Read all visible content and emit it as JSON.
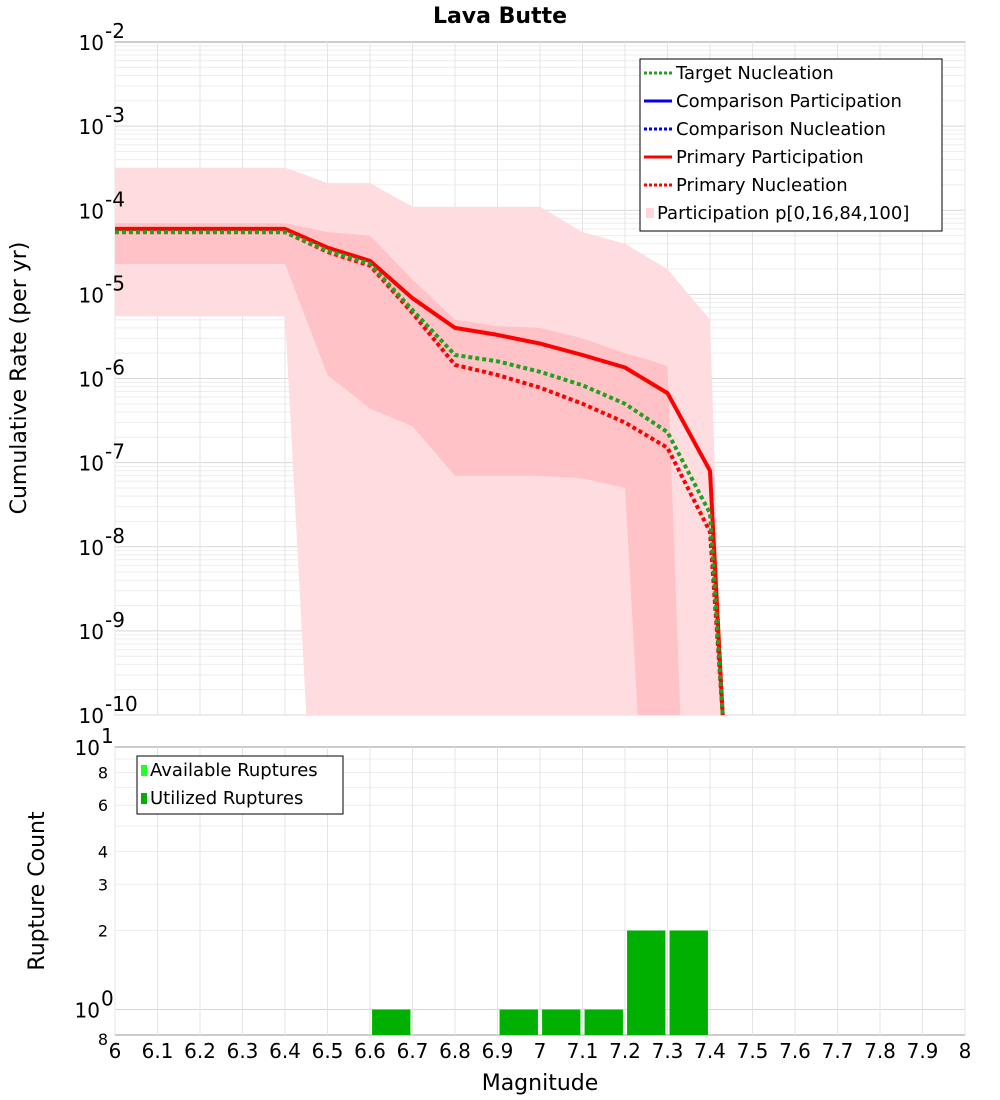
{
  "chart_data": [
    {
      "type": "line",
      "title": "Lava Butte",
      "xlabel": "",
      "ylabel": "Cumulative Rate (per yr)",
      "xlim": [
        6,
        8
      ],
      "ylim": [
        1e-10,
        0.01
      ],
      "yscale": "log",
      "ytick_exponents": [
        "-2",
        "-3",
        "-4",
        "-5",
        "-6",
        "-7",
        "-8",
        "-9",
        "-10"
      ],
      "ytick_base": "10",
      "legend": {
        "position": "top-right",
        "entries": [
          {
            "label": "Target Nucleation",
            "color": "#22a022",
            "style": "dotted"
          },
          {
            "label": "Comparison Participation",
            "color": "#0000ee",
            "style": "solid"
          },
          {
            "label": "Comparison Nucleation",
            "color": "#0000ee",
            "style": "dotted"
          },
          {
            "label": "Primary Participation",
            "color": "#ff0000",
            "style": "solid"
          },
          {
            "label": "Primary Nucleation",
            "color": "#ff0000",
            "style": "dotted"
          },
          {
            "label": "Participation p[0,16,84,100]",
            "color": "#ffd6d9",
            "style": "fill"
          }
        ]
      },
      "bands": [
        {
          "name": "p0-p100",
          "color": "#ffdcdf",
          "x": [
            6.0,
            6.4,
            6.45,
            6.5,
            6.6,
            6.7,
            6.8,
            6.9,
            7.0,
            7.1,
            7.2,
            7.3,
            7.4,
            7.43
          ],
          "upper": [
            0.00032,
            0.00032,
            0.00026,
            0.00021,
            0.00021,
            0.00011,
            0.00011,
            0.00011,
            0.00011,
            5.5e-05,
            4e-05,
            2e-05,
            5e-06,
            1e-10
          ],
          "lower": [
            5.5e-06,
            5.5e-06,
            1e-10,
            1e-10,
            1e-10,
            1e-10,
            1e-10,
            1e-10,
            1e-10,
            1e-10,
            1e-10,
            1e-10,
            1e-10,
            1e-10
          ]
        },
        {
          "name": "p16-p84",
          "color": "#ffc2c6",
          "x": [
            6.0,
            6.4,
            6.5,
            6.6,
            6.7,
            6.8,
            6.9,
            7.0,
            7.1,
            7.2,
            7.23,
            7.25,
            7.3,
            7.33,
            7.35
          ],
          "upper": [
            7e-05,
            7e-05,
            5.5e-05,
            5e-05,
            1.5e-05,
            5e-06,
            4.2e-06,
            4e-06,
            3e-06,
            2e-06,
            1.8e-06,
            1.7e-06,
            1.4e-06,
            1e-10,
            1e-10
          ],
          "lower": [
            2.3e-05,
            2.3e-05,
            1.1e-06,
            4.4e-07,
            2.7e-07,
            7e-08,
            7e-08,
            7e-08,
            6.5e-08,
            5e-08,
            1e-10,
            1e-10,
            1e-10,
            1e-10,
            1e-10
          ]
        }
      ],
      "series": [
        {
          "name": "Primary Participation",
          "color": "#ff0000",
          "style": "solid",
          "x": [
            6.0,
            6.4,
            6.5,
            6.6,
            6.7,
            6.8,
            6.9,
            7.0,
            7.1,
            7.2,
            7.3,
            7.4,
            7.43
          ],
          "values": [
            6e-05,
            6e-05,
            3.6e-05,
            2.5e-05,
            9e-06,
            4e-06,
            3.3e-06,
            2.6e-06,
            1.9e-06,
            1.35e-06,
            6.7e-07,
            8e-08,
            1e-10
          ]
        },
        {
          "name": "Primary Nucleation",
          "color": "#ff0000",
          "style": "dotted",
          "x": [
            6.0,
            6.4,
            6.5,
            6.6,
            6.7,
            6.8,
            6.9,
            7.0,
            7.1,
            7.2,
            7.3,
            7.4,
            7.43
          ],
          "values": [
            5.5e-05,
            5.5e-05,
            3.2e-05,
            2.2e-05,
            6e-06,
            1.45e-06,
            1.1e-06,
            7.8e-07,
            5e-07,
            3e-07,
            1.5e-07,
            1.5e-08,
            1e-10
          ]
        },
        {
          "name": "Target Nucleation",
          "color": "#22a022",
          "style": "dotted",
          "x": [
            6.0,
            6.4,
            6.5,
            6.6,
            6.7,
            6.8,
            6.9,
            7.0,
            7.1,
            7.2,
            7.3,
            7.4,
            7.43
          ],
          "values": [
            5.5e-05,
            5.5e-05,
            3.3e-05,
            2.3e-05,
            6.5e-06,
            1.9e-06,
            1.6e-06,
            1.2e-06,
            8.3e-07,
            5e-07,
            2.3e-07,
            2.5e-08,
            1e-10
          ]
        }
      ]
    },
    {
      "type": "bar",
      "title": "",
      "xlabel": "Magnitude",
      "ylabel": "Rupture Count",
      "xlim": [
        6,
        8
      ],
      "ylim": [
        0.8,
        10
      ],
      "yscale": "log",
      "x_ticks": [
        "6",
        "6.1",
        "6.2",
        "6.3",
        "6.4",
        "6.5",
        "6.6",
        "6.7",
        "6.8",
        "6.9",
        "7",
        "7.1",
        "7.2",
        "7.3",
        "7.4",
        "7.5",
        "7.6",
        "7.7",
        "7.8",
        "7.9",
        "8"
      ],
      "y_major_ticks": [
        {
          "base": "10",
          "exp": "0"
        },
        {
          "base": "10",
          "exp": "1"
        }
      ],
      "y_minor_ticks": [
        "8",
        "2",
        "3",
        "4",
        "6",
        "8"
      ],
      "legend": {
        "position": "top-left",
        "entries": [
          {
            "label": "Available Ruptures",
            "color": "#22ff22"
          },
          {
            "label": "Utilized Ruptures",
            "color": "#00b000"
          }
        ]
      },
      "bars": [
        {
          "x": 6.65,
          "available": 1,
          "utilized": 1
        },
        {
          "x": 6.95,
          "available": 1,
          "utilized": 1
        },
        {
          "x": 7.05,
          "available": 1,
          "utilized": 1
        },
        {
          "x": 7.15,
          "available": 1,
          "utilized": 1
        },
        {
          "x": 7.25,
          "available": 2,
          "utilized": 2
        },
        {
          "x": 7.35,
          "available": 2,
          "utilized": 2
        }
      ],
      "bar_width": 0.09
    }
  ]
}
